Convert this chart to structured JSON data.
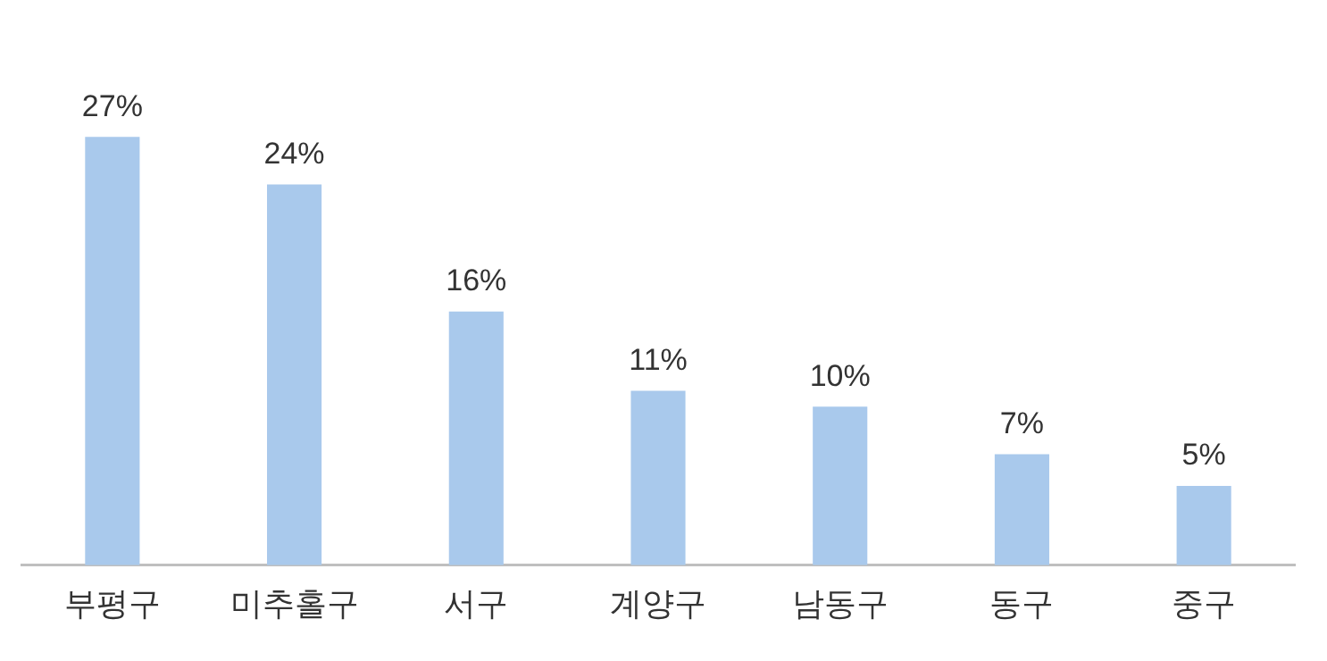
{
  "chart_data": {
    "type": "bar",
    "categories": [
      "부평구",
      "미추홀구",
      "서구",
      "계양구",
      "남동구",
      "동구",
      "중구"
    ],
    "values": [
      27,
      24,
      16,
      11,
      10,
      7,
      5
    ],
    "value_labels": [
      "27%",
      "24%",
      "16%",
      "11%",
      "10%",
      "7%",
      "5%"
    ],
    "color": "#a9c9ec",
    "grid": false,
    "legend": false
  }
}
